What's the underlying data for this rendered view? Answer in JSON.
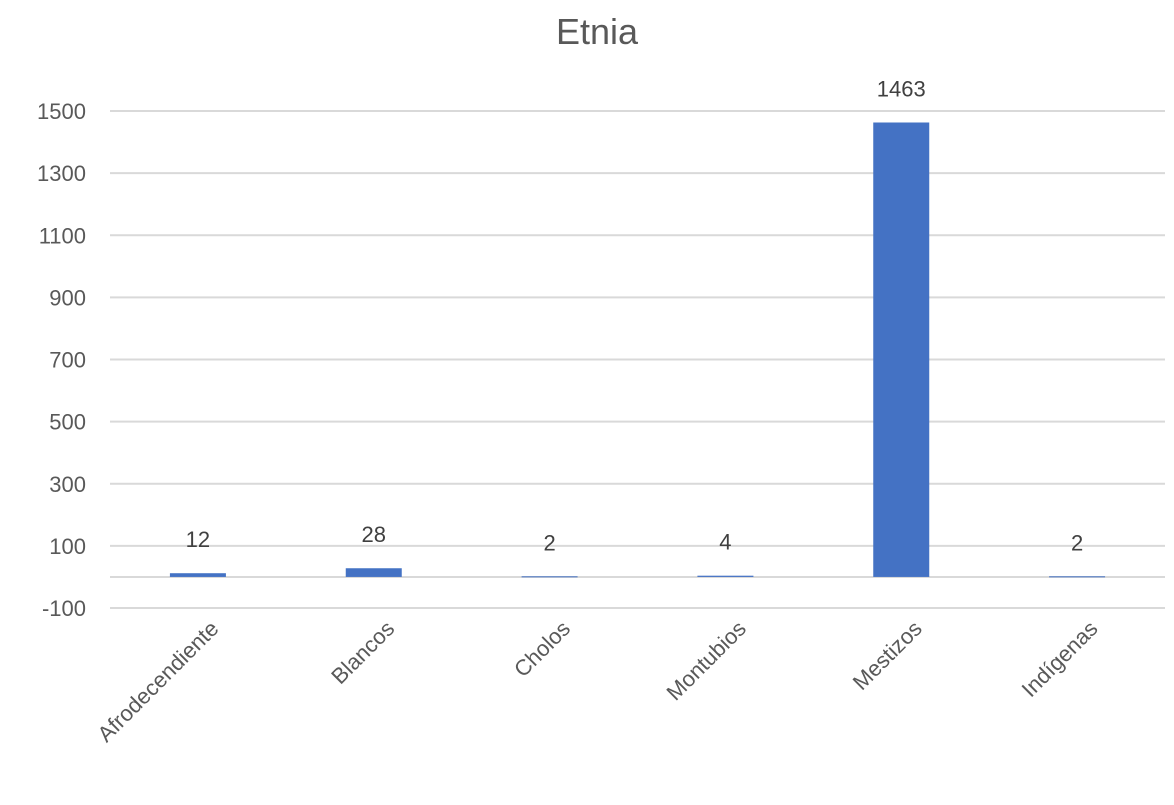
{
  "chart_data": {
    "type": "bar",
    "title": "Etnia",
    "xlabel": "",
    "ylabel": "",
    "categories": [
      "Afrodecendiente",
      "Blancos",
      "Cholos",
      "Montubios",
      "Mestizos",
      "Indígenas"
    ],
    "values": [
      12,
      28,
      2,
      4,
      1463,
      2
    ],
    "value_labels": [
      "12",
      "28",
      "2",
      "4",
      "1463",
      "2"
    ],
    "yticks": [
      -100,
      100,
      300,
      500,
      700,
      900,
      1100,
      1300,
      1500
    ],
    "ytick_labels": [
      "-100",
      "100",
      "300",
      "500",
      "700",
      "900",
      "1100",
      "1300",
      "1500"
    ],
    "ylim": [
      -100,
      1500
    ],
    "grid": true,
    "legend": "none",
    "bar_color": "#4472c4"
  }
}
